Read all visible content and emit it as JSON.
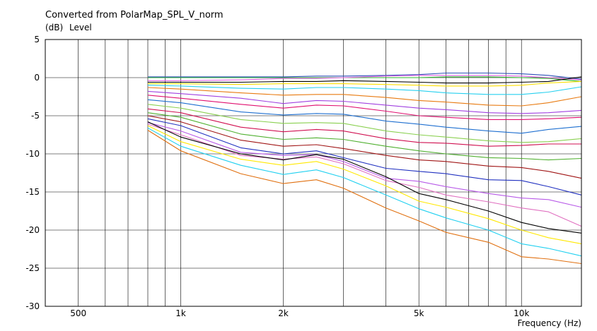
{
  "chart_data": {
    "type": "line",
    "title": "Converted from PolarMap_SPL_V_norm",
    "ylabel_unit": "(dB)",
    "ylabel": "Level",
    "xlabel": "Frequency (Hz)",
    "xscale": "log",
    "xlim": [
      400,
      15000
    ],
    "ylim": [
      -30,
      5
    ],
    "x_ticks": [
      {
        "v": 500,
        "label": "500"
      },
      {
        "v": 1000,
        "label": "1k"
      },
      {
        "v": 2000,
        "label": "2k"
      },
      {
        "v": 5000,
        "label": "5k"
      },
      {
        "v": 10000,
        "label": "10k"
      }
    ],
    "y_ticks": [
      {
        "v": 5,
        "label": "5"
      },
      {
        "v": 0,
        "label": "0"
      },
      {
        "v": -5,
        "label": "-5"
      },
      {
        "v": -10,
        "label": "-10"
      },
      {
        "v": -15,
        "label": "-15"
      },
      {
        "v": -20,
        "label": "-20"
      },
      {
        "v": -25,
        "label": "-25"
      },
      {
        "v": -30,
        "label": "-30"
      }
    ],
    "grid": true,
    "x": [
      800,
      1000,
      1500,
      2000,
      2500,
      3000,
      4000,
      5000,
      6000,
      8000,
      10000,
      12000,
      15000
    ],
    "series": [
      {
        "color": "#2e4fb8",
        "values": [
          0.1,
          0.1,
          0.1,
          0.1,
          0.2,
          0.2,
          0.3,
          0.4,
          0.6,
          0.6,
          0.5,
          0.3,
          -0.2
        ]
      },
      {
        "color": "#2fb52f",
        "values": [
          0.0,
          0.0,
          0.0,
          0.0,
          0.0,
          0.0,
          0.0,
          0.0,
          0.1,
          0.1,
          0.0,
          -0.1,
          -0.5
        ]
      },
      {
        "color": "#e060e0",
        "values": [
          -0.4,
          -0.4,
          -0.3,
          -0.1,
          -0.1,
          0.0,
          0.2,
          0.3,
          0.3,
          0.3,
          0.2,
          0.0,
          -0.3
        ]
      },
      {
        "color": "#000000",
        "values": [
          -0.6,
          -0.6,
          -0.6,
          -0.5,
          -0.5,
          -0.4,
          -0.5,
          -0.6,
          -0.7,
          -0.7,
          -0.6,
          -0.5,
          0.1
        ]
      },
      {
        "color": "#ffe000",
        "values": [
          -0.8,
          -0.8,
          -0.9,
          -0.8,
          -0.8,
          -0.8,
          -0.9,
          -1.0,
          -1.1,
          -1.1,
          -1.0,
          -0.7,
          -0.5
        ]
      },
      {
        "color": "#26d0ef",
        "values": [
          -1.0,
          -1.1,
          -1.4,
          -1.5,
          -1.3,
          -1.3,
          -1.5,
          -1.7,
          -2.0,
          -2.2,
          -2.2,
          -1.9,
          -1.2
        ]
      },
      {
        "color": "#e87a10",
        "values": [
          -1.3,
          -1.5,
          -2.0,
          -2.3,
          -2.2,
          -2.2,
          -2.6,
          -3.0,
          -3.2,
          -3.6,
          -3.7,
          -3.3,
          -2.5
        ]
      },
      {
        "color": "#a040e0",
        "values": [
          -1.8,
          -2.1,
          -2.7,
          -3.4,
          -3.0,
          -3.1,
          -3.6,
          -4.0,
          -4.2,
          -4.6,
          -4.7,
          -4.6,
          -4.3
        ]
      },
      {
        "color": "#e01070",
        "values": [
          -2.3,
          -2.7,
          -3.5,
          -4.0,
          -3.6,
          -3.7,
          -4.4,
          -5.0,
          -5.2,
          -5.5,
          -5.5,
          -5.4,
          -5.2
        ]
      },
      {
        "color": "#1e6fd0",
        "values": [
          -2.9,
          -3.3,
          -4.5,
          -4.9,
          -4.7,
          -4.8,
          -5.7,
          -6.1,
          -6.5,
          -7.0,
          -7.3,
          -6.8,
          -6.4
        ]
      },
      {
        "color": "#8ad050",
        "values": [
          -3.5,
          -4.0,
          -5.5,
          -6.0,
          -5.9,
          -6.0,
          -7.0,
          -7.5,
          -7.8,
          -8.3,
          -8.5,
          -8.4,
          -8.0
        ]
      },
      {
        "color": "#d01050",
        "values": [
          -4.1,
          -4.6,
          -6.5,
          -7.1,
          -6.8,
          -7.0,
          -8.0,
          -8.5,
          -8.6,
          -9.0,
          -8.9,
          -8.7,
          -8.7
        ]
      },
      {
        "color": "#50b030",
        "values": [
          -4.6,
          -5.2,
          -7.4,
          -8.1,
          -7.9,
          -8.1,
          -9.0,
          -9.6,
          -10.0,
          -10.5,
          -10.6,
          -10.8,
          -10.6
        ]
      },
      {
        "color": "#a01515",
        "values": [
          -5.0,
          -5.8,
          -8.2,
          -9.0,
          -8.8,
          -9.3,
          -10.2,
          -10.8,
          -11.0,
          -11.6,
          -11.8,
          -12.3,
          -13.2
        ]
      },
      {
        "color": "#2030c0",
        "values": [
          -5.4,
          -6.3,
          -9.2,
          -10.0,
          -9.6,
          -10.5,
          -11.9,
          -12.3,
          -12.6,
          -13.4,
          -13.5,
          -14.3,
          -15.4
        ]
      },
      {
        "color": "#b85ae8",
        "values": [
          -5.9,
          -7.0,
          -9.8,
          -10.2,
          -10.1,
          -11.0,
          -13.2,
          -13.6,
          -14.3,
          -15.2,
          -15.8,
          -16.0,
          -17.0
        ]
      },
      {
        "color": "#e070c0",
        "values": [
          -6.1,
          -7.5,
          -10.2,
          -10.7,
          -10.4,
          -11.3,
          -13.5,
          -14.4,
          -15.4,
          -16.3,
          -17.1,
          -17.6,
          -19.5
        ]
      },
      {
        "color": "#000000",
        "values": [
          -5.8,
          -7.8,
          -10.0,
          -10.8,
          -10.1,
          -10.7,
          -13.0,
          -15.2,
          -16.0,
          -17.5,
          -19.0,
          -19.8,
          -20.4
        ]
      },
      {
        "color": "#ffe800",
        "values": [
          -6.3,
          -8.4,
          -10.7,
          -11.5,
          -11.0,
          -12.0,
          -14.2,
          -16.2,
          -17.0,
          -18.5,
          -20.0,
          -21.0,
          -21.8
        ]
      },
      {
        "color": "#20d0f0",
        "values": [
          -6.6,
          -9.0,
          -11.5,
          -12.7,
          -12.1,
          -13.1,
          -15.4,
          -17.2,
          -18.4,
          -20.0,
          -21.8,
          -22.4,
          -23.4
        ]
      },
      {
        "color": "#e07010",
        "values": [
          -6.9,
          -9.6,
          -12.6,
          -13.9,
          -13.4,
          -14.5,
          -17.1,
          -18.8,
          -20.3,
          -21.6,
          -23.5,
          -23.8,
          -24.4
        ]
      }
    ]
  }
}
